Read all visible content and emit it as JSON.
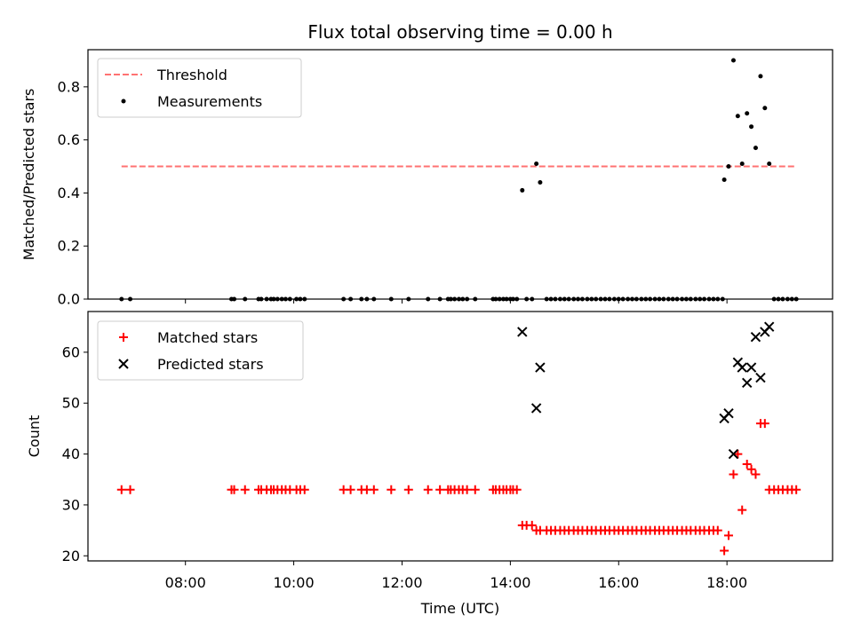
{
  "chart_data": {
    "title": "Flux total observing time = 0.00 h",
    "xlabel": "Time (UTC)",
    "x_range_hours": [
      6.2,
      19.95
    ],
    "x_ticks": [
      {
        "value": 8,
        "label": "08:00"
      },
      {
        "value": 10,
        "label": "10:00"
      },
      {
        "value": 12,
        "label": "12:00"
      },
      {
        "value": 14,
        "label": "14:00"
      },
      {
        "value": 16,
        "label": "16:00"
      },
      {
        "value": 18,
        "label": "18:00"
      }
    ],
    "panels": [
      {
        "type": "scatter",
        "ylabel": "Matched/Predicted stars",
        "ylim": [
          0,
          0.94
        ],
        "yticks": [
          0.0,
          0.2,
          0.4,
          0.6,
          0.8
        ],
        "ytick_labels": [
          "0.0",
          "0.2",
          "0.4",
          "0.6",
          "0.8"
        ],
        "legend_position": "upper-left",
        "threshold": {
          "name": "Threshold",
          "value": 0.5,
          "x_start": 6.82,
          "x_end": 19.27,
          "color": "#ff7272"
        },
        "series": [
          {
            "name": "Measurements",
            "marker": "dot",
            "color": "#000000",
            "points": [
              [
                6.82,
                0
              ],
              [
                6.98,
                0
              ],
              [
                8.85,
                0
              ],
              [
                8.9,
                0
              ],
              [
                9.1,
                0
              ],
              [
                9.35,
                0
              ],
              [
                9.4,
                0
              ],
              [
                9.5,
                0
              ],
              [
                9.58,
                0
              ],
              [
                9.63,
                0
              ],
              [
                9.7,
                0
              ],
              [
                9.78,
                0
              ],
              [
                9.85,
                0
              ],
              [
                9.93,
                0
              ],
              [
                10.05,
                0
              ],
              [
                10.12,
                0
              ],
              [
                10.2,
                0
              ],
              [
                10.92,
                0
              ],
              [
                11.05,
                0
              ],
              [
                11.25,
                0
              ],
              [
                11.35,
                0
              ],
              [
                11.48,
                0
              ],
              [
                11.8,
                0
              ],
              [
                12.12,
                0
              ],
              [
                12.48,
                0
              ],
              [
                12.7,
                0
              ],
              [
                12.85,
                0
              ],
              [
                12.9,
                0
              ],
              [
                12.97,
                0
              ],
              [
                13.05,
                0
              ],
              [
                13.12,
                0
              ],
              [
                13.2,
                0
              ],
              [
                13.35,
                0
              ],
              [
                13.68,
                0
              ],
              [
                13.73,
                0
              ],
              [
                13.8,
                0
              ],
              [
                13.87,
                0
              ],
              [
                13.93,
                0
              ],
              [
                14.0,
                0
              ],
              [
                14.05,
                0
              ],
              [
                14.12,
                0
              ],
              [
                14.22,
                0.41
              ],
              [
                14.3,
                0
              ],
              [
                14.4,
                0
              ],
              [
                14.48,
                0.51
              ],
              [
                14.55,
                0.44
              ],
              [
                14.67,
                0
              ],
              [
                14.75,
                0
              ],
              [
                14.83,
                0
              ],
              [
                14.92,
                0
              ],
              [
                15.0,
                0
              ],
              [
                15.08,
                0
              ],
              [
                15.17,
                0
              ],
              [
                15.25,
                0
              ],
              [
                15.33,
                0
              ],
              [
                15.42,
                0
              ],
              [
                15.5,
                0
              ],
              [
                15.58,
                0
              ],
              [
                15.67,
                0
              ],
              [
                15.75,
                0
              ],
              [
                15.83,
                0
              ],
              [
                15.92,
                0
              ],
              [
                16.0,
                0
              ],
              [
                16.08,
                0
              ],
              [
                16.17,
                0
              ],
              [
                16.25,
                0
              ],
              [
                16.33,
                0
              ],
              [
                16.42,
                0
              ],
              [
                16.5,
                0
              ],
              [
                16.58,
                0
              ],
              [
                16.67,
                0
              ],
              [
                16.75,
                0
              ],
              [
                16.83,
                0
              ],
              [
                16.92,
                0
              ],
              [
                17.0,
                0
              ],
              [
                17.08,
                0
              ],
              [
                17.17,
                0
              ],
              [
                17.25,
                0
              ],
              [
                17.33,
                0
              ],
              [
                17.42,
                0
              ],
              [
                17.5,
                0
              ],
              [
                17.58,
                0
              ],
              [
                17.67,
                0
              ],
              [
                17.75,
                0
              ],
              [
                17.83,
                0
              ],
              [
                17.92,
                0
              ],
              [
                17.95,
                0.45
              ],
              [
                18.03,
                0.5
              ],
              [
                18.12,
                0.9
              ],
              [
                18.2,
                0.69
              ],
              [
                18.28,
                0.51
              ],
              [
                18.37,
                0.7
              ],
              [
                18.45,
                0.65
              ],
              [
                18.53,
                0.57
              ],
              [
                18.62,
                0.84
              ],
              [
                18.7,
                0.72
              ],
              [
                18.78,
                0.51
              ],
              [
                18.87,
                0
              ],
              [
                18.95,
                0
              ],
              [
                19.03,
                0
              ],
              [
                19.12,
                0
              ],
              [
                19.2,
                0
              ],
              [
                19.28,
                0
              ]
            ]
          }
        ]
      },
      {
        "type": "scatter",
        "ylabel": "Count",
        "ylim": [
          19,
          68
        ],
        "yticks": [
          20,
          30,
          40,
          50,
          60
        ],
        "ytick_labels": [
          "20",
          "30",
          "40",
          "50",
          "60"
        ],
        "legend_position": "upper-left",
        "series": [
          {
            "name": "Matched stars",
            "marker": "plus",
            "color": "#ff0000",
            "points": [
              [
                6.82,
                33
              ],
              [
                6.98,
                33
              ],
              [
                8.85,
                33
              ],
              [
                8.9,
                33
              ],
              [
                9.1,
                33
              ],
              [
                9.35,
                33
              ],
              [
                9.4,
                33
              ],
              [
                9.5,
                33
              ],
              [
                9.58,
                33
              ],
              [
                9.63,
                33
              ],
              [
                9.7,
                33
              ],
              [
                9.78,
                33
              ],
              [
                9.85,
                33
              ],
              [
                9.93,
                33
              ],
              [
                10.05,
                33
              ],
              [
                10.12,
                33
              ],
              [
                10.2,
                33
              ],
              [
                10.92,
                33
              ],
              [
                11.05,
                33
              ],
              [
                11.25,
                33
              ],
              [
                11.35,
                33
              ],
              [
                11.48,
                33
              ],
              [
                11.8,
                33
              ],
              [
                12.12,
                33
              ],
              [
                12.48,
                33
              ],
              [
                12.7,
                33
              ],
              [
                12.85,
                33
              ],
              [
                12.9,
                33
              ],
              [
                12.97,
                33
              ],
              [
                13.05,
                33
              ],
              [
                13.12,
                33
              ],
              [
                13.2,
                33
              ],
              [
                13.35,
                33
              ],
              [
                13.68,
                33
              ],
              [
                13.73,
                33
              ],
              [
                13.8,
                33
              ],
              [
                13.87,
                33
              ],
              [
                13.93,
                33
              ],
              [
                14.0,
                33
              ],
              [
                14.05,
                33
              ],
              [
                14.12,
                33
              ],
              [
                14.22,
                26
              ],
              [
                14.3,
                26
              ],
              [
                14.4,
                26
              ],
              [
                14.48,
                25
              ],
              [
                14.55,
                25
              ],
              [
                14.67,
                25
              ],
              [
                14.75,
                25
              ],
              [
                14.83,
                25
              ],
              [
                14.92,
                25
              ],
              [
                15.0,
                25
              ],
              [
                15.08,
                25
              ],
              [
                15.17,
                25
              ],
              [
                15.25,
                25
              ],
              [
                15.33,
                25
              ],
              [
                15.42,
                25
              ],
              [
                15.5,
                25
              ],
              [
                15.58,
                25
              ],
              [
                15.67,
                25
              ],
              [
                15.75,
                25
              ],
              [
                15.83,
                25
              ],
              [
                15.92,
                25
              ],
              [
                16.0,
                25
              ],
              [
                16.08,
                25
              ],
              [
                16.17,
                25
              ],
              [
                16.25,
                25
              ],
              [
                16.33,
                25
              ],
              [
                16.42,
                25
              ],
              [
                16.5,
                25
              ],
              [
                16.58,
                25
              ],
              [
                16.67,
                25
              ],
              [
                16.75,
                25
              ],
              [
                16.83,
                25
              ],
              [
                16.92,
                25
              ],
              [
                17.0,
                25
              ],
              [
                17.08,
                25
              ],
              [
                17.17,
                25
              ],
              [
                17.25,
                25
              ],
              [
                17.33,
                25
              ],
              [
                17.42,
                25
              ],
              [
                17.5,
                25
              ],
              [
                17.58,
                25
              ],
              [
                17.67,
                25
              ],
              [
                17.75,
                25
              ],
              [
                17.83,
                25
              ],
              [
                17.95,
                21
              ],
              [
                18.03,
                24
              ],
              [
                18.12,
                36
              ],
              [
                18.2,
                40
              ],
              [
                18.28,
                29
              ],
              [
                18.37,
                38
              ],
              [
                18.45,
                37
              ],
              [
                18.53,
                36
              ],
              [
                18.62,
                46
              ],
              [
                18.7,
                46
              ],
              [
                18.78,
                33
              ],
              [
                18.87,
                33
              ],
              [
                18.95,
                33
              ],
              [
                19.03,
                33
              ],
              [
                19.12,
                33
              ],
              [
                19.2,
                33
              ],
              [
                19.28,
                33
              ]
            ]
          },
          {
            "name": "Predicted stars",
            "marker": "x",
            "color": "#000000",
            "points": [
              [
                14.22,
                64
              ],
              [
                14.48,
                49
              ],
              [
                14.55,
                57
              ],
              [
                17.95,
                47
              ],
              [
                18.03,
                48
              ],
              [
                18.12,
                40
              ],
              [
                18.2,
                58
              ],
              [
                18.28,
                57
              ],
              [
                18.37,
                54
              ],
              [
                18.45,
                57
              ],
              [
                18.53,
                63
              ],
              [
                18.62,
                55
              ],
              [
                18.7,
                64
              ],
              [
                18.78,
                65
              ]
            ]
          }
        ]
      }
    ]
  }
}
